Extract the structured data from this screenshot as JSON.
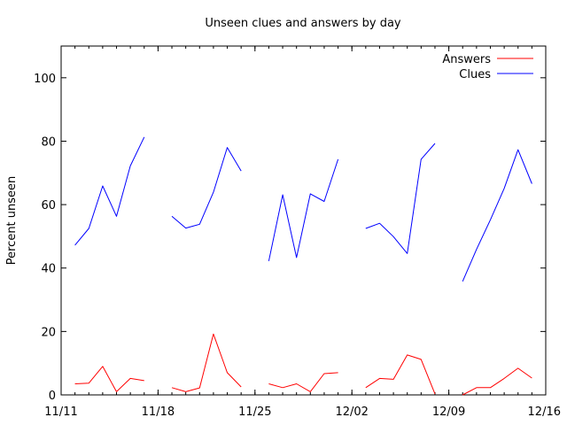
{
  "chart_data": {
    "type": "line",
    "title": "Unseen clues and answers by day",
    "ylabel": "Percent unseen",
    "xlabel": "",
    "ylim": [
      0,
      110
    ],
    "y_ticks": [
      0,
      20,
      40,
      60,
      80,
      100
    ],
    "x_range": [
      "2012-11-11",
      "2012-12-16"
    ],
    "x_ticks": [
      {
        "label": "11/11",
        "date": "2012-11-11"
      },
      {
        "label": "11/18",
        "date": "2012-11-18"
      },
      {
        "label": "11/25",
        "date": "2012-11-25"
      },
      {
        "label": "12/02",
        "date": "2012-12-02"
      },
      {
        "label": "12/09",
        "date": "2012-12-09"
      },
      {
        "label": "12/16",
        "date": "2012-12-16"
      }
    ],
    "grid": false,
    "legend": "top-right",
    "series": [
      {
        "name": "Answers",
        "color": "#ff0000",
        "segments": [
          [
            [
              "2012-11-12",
              3.5
            ],
            [
              "2012-11-13",
              3.7
            ],
            [
              "2012-11-14",
              9.0
            ],
            [
              "2012-11-15",
              1.0
            ],
            [
              "2012-11-16",
              5.2
            ],
            [
              "2012-11-17",
              4.5
            ]
          ],
          [
            [
              "2012-11-19",
              2.3
            ],
            [
              "2012-11-20",
              1.0
            ],
            [
              "2012-11-21",
              2.2
            ],
            [
              "2012-11-22",
              19.2
            ],
            [
              "2012-11-23",
              7.0
            ],
            [
              "2012-11-24",
              2.5
            ]
          ],
          [
            [
              "2012-11-26",
              3.5
            ],
            [
              "2012-11-27",
              2.3
            ],
            [
              "2012-11-28",
              3.5
            ],
            [
              "2012-11-29",
              1.0
            ],
            [
              "2012-11-30",
              6.7
            ],
            [
              "2012-12-01",
              7.0
            ]
          ],
          [
            [
              "2012-12-03",
              2.3
            ],
            [
              "2012-12-04",
              5.2
            ],
            [
              "2012-12-05",
              4.9
            ],
            [
              "2012-12-06",
              12.6
            ],
            [
              "2012-12-07",
              11.2
            ],
            [
              "2012-12-08",
              0.3
            ]
          ],
          [
            [
              "2012-12-10",
              0.0
            ],
            [
              "2012-12-11",
              2.3
            ],
            [
              "2012-12-12",
              2.3
            ],
            [
              "2012-12-13",
              5.2
            ],
            [
              "2012-12-14",
              8.4
            ],
            [
              "2012-12-15",
              5.3
            ]
          ]
        ]
      },
      {
        "name": "Clues",
        "color": "#0000ff",
        "segments": [
          [
            [
              "2012-11-12",
              47.2
            ],
            [
              "2012-11-13",
              52.5
            ],
            [
              "2012-11-14",
              65.9
            ],
            [
              "2012-11-15",
              56.3
            ],
            [
              "2012-11-16",
              72.2
            ],
            [
              "2012-11-17",
              81.3
            ]
          ],
          [
            [
              "2012-11-19",
              56.3
            ],
            [
              "2012-11-20",
              52.6
            ],
            [
              "2012-11-21",
              53.8
            ],
            [
              "2012-11-22",
              63.9
            ],
            [
              "2012-11-23",
              78.0
            ],
            [
              "2012-11-24",
              70.6
            ]
          ],
          [
            [
              "2012-11-26",
              42.2
            ],
            [
              "2012-11-27",
              63.1
            ],
            [
              "2012-11-28",
              43.3
            ],
            [
              "2012-11-29",
              63.4
            ],
            [
              "2012-11-30",
              61.0
            ],
            [
              "2012-12-01",
              74.3
            ]
          ],
          [
            [
              "2012-12-03",
              52.5
            ],
            [
              "2012-12-04",
              54.1
            ],
            [
              "2012-12-05",
              49.9
            ],
            [
              "2012-12-06",
              44.6
            ],
            [
              "2012-12-07",
              74.3
            ],
            [
              "2012-12-08",
              79.3
            ]
          ],
          [
            [
              "2012-12-10",
              35.8
            ],
            [
              "2012-12-11",
              45.9
            ],
            [
              "2012-12-12",
              55.2
            ],
            [
              "2012-12-13",
              65.1
            ],
            [
              "2012-12-14",
              77.3
            ],
            [
              "2012-12-15",
              66.6
            ]
          ]
        ]
      }
    ]
  }
}
